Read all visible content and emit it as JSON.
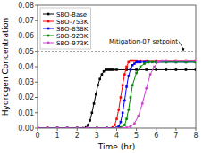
{
  "chart_data": {
    "type": "line",
    "xlabel": "Time (hr)",
    "ylabel": "Hydrogen Concentration",
    "xlim": [
      0,
      8
    ],
    "ylim": [
      0,
      0.08
    ],
    "xticks": [
      0,
      1,
      2,
      3,
      4,
      5,
      6,
      7,
      8
    ],
    "yticks": [
      {
        "value": 0,
        "label": "0.00"
      },
      0.01,
      0.02,
      0.03,
      0.04,
      0.05,
      0.06,
      0.07,
      0.08
    ],
    "grid": false,
    "legend": "upper-left",
    "annotations": [
      {
        "text": "Mitigation-07 setpoint",
        "y": 0.05
      }
    ],
    "series": [
      {
        "name": "SBO-Base",
        "color": "#000000",
        "marker": "square",
        "x": [
          0,
          0.5,
          1.0,
          1.5,
          2.0,
          2.3,
          2.45,
          2.55,
          2.65,
          2.75,
          2.85,
          2.95,
          3.05,
          3.15,
          3.25,
          3.35,
          3.45,
          3.55,
          3.65,
          3.75,
          3.85,
          4.0,
          4.5,
          5.0,
          5.5,
          6.0,
          6.5,
          7.0,
          7.5,
          8.0
        ],
        "values": [
          0,
          0,
          0,
          0,
          0,
          0,
          0.0005,
          0.002,
          0.005,
          0.01,
          0.016,
          0.022,
          0.028,
          0.032,
          0.035,
          0.037,
          0.038,
          0.038,
          0.038,
          0.038,
          0.038,
          0.038,
          0.038,
          0.038,
          0.038,
          0.038,
          0.038,
          0.038,
          0.038,
          0.038
        ]
      },
      {
        "name": "SBO-753K",
        "color": "#ff0000",
        "marker": "square",
        "x": [
          0,
          0.5,
          1.0,
          1.5,
          2.0,
          2.5,
          3.0,
          3.5,
          3.8,
          3.9,
          4.0,
          4.1,
          4.2,
          4.3,
          4.4,
          4.5,
          4.6,
          4.7,
          4.8,
          4.9,
          5.0,
          5.2,
          5.5,
          6.0,
          6.5,
          7.0,
          7.5,
          8.0
        ],
        "values": [
          0,
          0,
          0,
          0,
          0,
          0,
          0,
          0,
          0.0005,
          0.002,
          0.006,
          0.012,
          0.02,
          0.028,
          0.035,
          0.04,
          0.043,
          0.044,
          0.044,
          0.044,
          0.044,
          0.044,
          0.044,
          0.044,
          0.044,
          0.044,
          0.044,
          0.044
        ]
      },
      {
        "name": "SBO-838K",
        "color": "#0000ff",
        "marker": "square",
        "x": [
          0,
          0.5,
          1.0,
          1.5,
          2.0,
          2.5,
          3.0,
          3.5,
          4.0,
          4.1,
          4.2,
          4.3,
          4.4,
          4.5,
          4.6,
          4.7,
          4.8,
          4.9,
          5.0,
          5.1,
          5.2,
          5.4,
          5.6,
          6.0,
          6.5,
          7.0,
          7.5,
          8.0
        ],
        "values": [
          0,
          0,
          0,
          0,
          0,
          0,
          0,
          0,
          0.0003,
          0.001,
          0.004,
          0.01,
          0.018,
          0.027,
          0.034,
          0.038,
          0.041,
          0.042,
          0.043,
          0.043,
          0.043,
          0.043,
          0.043,
          0.043,
          0.043,
          0.043,
          0.043,
          0.043
        ]
      },
      {
        "name": "SBO-923K",
        "color": "#008800",
        "marker": "square",
        "x": [
          0,
          0.5,
          1.0,
          1.5,
          2.0,
          2.5,
          3.0,
          3.5,
          4.0,
          4.2,
          4.4,
          4.5,
          4.6,
          4.7,
          4.8,
          5.0,
          5.2,
          5.4,
          5.6,
          5.8,
          6.0,
          6.5,
          7.0,
          7.5,
          8.0
        ],
        "values": [
          0,
          0,
          0,
          0,
          0,
          0,
          0,
          0,
          0,
          0.0005,
          0.002,
          0.006,
          0.012,
          0.02,
          0.028,
          0.036,
          0.04,
          0.042,
          0.043,
          0.043,
          0.043,
          0.043,
          0.043,
          0.043,
          0.043
        ]
      },
      {
        "name": "SBO-973K",
        "color": "#cc44cc",
        "marker": "square",
        "x": [
          0,
          0.5,
          1.0,
          1.5,
          2.0,
          2.5,
          3.0,
          3.5,
          4.0,
          4.3,
          4.5,
          4.7,
          4.9,
          5.1,
          5.3,
          5.5,
          5.7,
          5.9,
          6.1,
          6.3,
          6.5,
          7.0,
          7.5,
          8.0
        ],
        "values": [
          0,
          0,
          0,
          0,
          0,
          0,
          0,
          0,
          0,
          0,
          0.0003,
          0.001,
          0.003,
          0.008,
          0.016,
          0.026,
          0.035,
          0.04,
          0.043,
          0.044,
          0.044,
          0.044,
          0.044,
          0.044
        ]
      }
    ]
  }
}
